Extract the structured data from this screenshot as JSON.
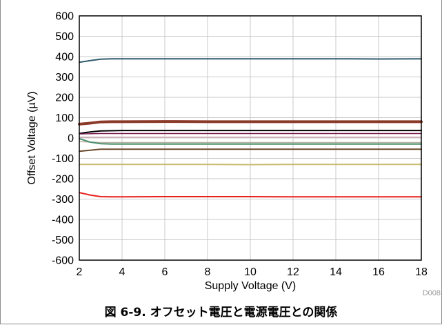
{
  "chart_data": {
    "type": "line",
    "xlabel": "Supply Voltage (V)",
    "ylabel": "Offset Voltage (µV)",
    "xlim": [
      2,
      18
    ],
    "ylim": [
      -600,
      600
    ],
    "xticks": [
      "2",
      "4",
      "6",
      "8",
      "10",
      "12",
      "14",
      "16",
      "18"
    ],
    "yticks": [
      "600",
      "500",
      "400",
      "300",
      "200",
      "100",
      "0",
      "-100",
      "-200",
      "-300",
      "-400",
      "-500",
      "-600"
    ],
    "grid": true,
    "legend": "none",
    "code_label": "D008",
    "series": [
      {
        "color": "#2e5b6e",
        "width": 2,
        "x": [
          2,
          2.5,
          3,
          3.5,
          4,
          6,
          8,
          10,
          12,
          14,
          16,
          18
        ],
        "values": [
          372,
          380,
          387,
          389,
          389,
          389,
          389,
          389,
          389,
          389,
          388,
          389
        ]
      },
      {
        "color": "#8b3a2a",
        "width": 4,
        "x": [
          2,
          2.5,
          3,
          3.5,
          4,
          6,
          8,
          10,
          12,
          14,
          16,
          18
        ],
        "values": [
          68,
          73,
          79,
          80,
          80,
          81,
          80,
          80,
          80,
          80,
          80,
          80
        ]
      },
      {
        "color": "#000000",
        "width": 2,
        "x": [
          2,
          2.5,
          3,
          4,
          6,
          8,
          10,
          12,
          14,
          16,
          18
        ],
        "values": [
          22,
          30,
          35,
          37,
          37,
          37,
          37,
          37,
          37,
          37,
          37
        ]
      },
      {
        "color": "#7a1b4e",
        "width": 1.5,
        "x": [
          2,
          3,
          4,
          6,
          8,
          10,
          12,
          14,
          16,
          18
        ],
        "values": [
          20,
          22,
          22,
          22,
          22,
          22,
          22,
          22,
          22,
          22
        ]
      },
      {
        "color": "#c8a4ad",
        "width": 1.5,
        "x": [
          2,
          3,
          4,
          6,
          8,
          10,
          12,
          14,
          16,
          18
        ],
        "values": [
          4,
          4,
          4,
          4,
          4,
          4,
          4,
          4,
          4,
          4
        ]
      },
      {
        "color": "#b8b2a2",
        "width": 1.5,
        "x": [
          2,
          3,
          4,
          6,
          8,
          10,
          12,
          14,
          16,
          18
        ],
        "values": [
          -18,
          -22,
          -22,
          -22,
          -22,
          -22,
          -22,
          -22,
          -22,
          -22
        ]
      },
      {
        "color": "#4a8f6e",
        "width": 2,
        "x": [
          2,
          2.5,
          3,
          3.5,
          4,
          6,
          8,
          10,
          12,
          14,
          16,
          18
        ],
        "values": [
          -3,
          -20,
          -28,
          -30,
          -30,
          -30,
          -30,
          -30,
          -30,
          -30,
          -30,
          -30
        ]
      },
      {
        "color": "#6b4a2a",
        "width": 2,
        "x": [
          2,
          2.5,
          3,
          4,
          6,
          8,
          10,
          12,
          14,
          16,
          18
        ],
        "values": [
          -65,
          -60,
          -55,
          -55,
          -55,
          -55,
          -55,
          -55,
          -55,
          -55,
          -55
        ]
      },
      {
        "color": "#c9bd72",
        "width": 2,
        "x": [
          2,
          3,
          4,
          6,
          8,
          10,
          12,
          14,
          16,
          18
        ],
        "values": [
          -130,
          -130,
          -130,
          -130,
          -130,
          -131,
          -130,
          -130,
          -130,
          -130
        ]
      },
      {
        "color": "#e8201c",
        "width": 2,
        "x": [
          2,
          2.5,
          3,
          3.5,
          4,
          6,
          8,
          10,
          12,
          14,
          16,
          18
        ],
        "values": [
          -268,
          -280,
          -288,
          -289,
          -289,
          -288,
          -288,
          -288,
          -289,
          -289,
          -289,
          -289
        ]
      }
    ]
  },
  "caption": "図 6-9. オフセット電圧と電源電圧との関係"
}
